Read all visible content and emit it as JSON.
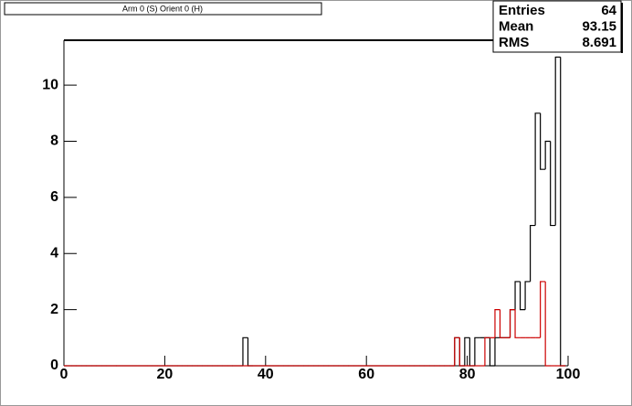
{
  "chart_data": {
    "type": "histogram",
    "title": "Arm 0 (S) Orient 0 (H)",
    "bins": [
      -0.5,
      0.5,
      1.5,
      2.5,
      3.5,
      4.5,
      5.5,
      6.5,
      7.5,
      8.5,
      9.5,
      10.5,
      11.5,
      12.5,
      13.5,
      14.5,
      15.5,
      16.5,
      17.5,
      18.5,
      19.5,
      20.5,
      21.5,
      22.5,
      23.5,
      24.5,
      25.5,
      26.5,
      27.5,
      28.5,
      29.5,
      30.5,
      31.5,
      32.5,
      33.5,
      34.5,
      35.5,
      36.5,
      37.5,
      38.5,
      39.5,
      40.5,
      41.5,
      42.5,
      43.5,
      44.5,
      45.5,
      46.5,
      47.5,
      48.5,
      49.5,
      50.5,
      51.5,
      52.5,
      53.5,
      54.5,
      55.5,
      56.5,
      57.5,
      58.5,
      59.5,
      60.5,
      61.5,
      62.5,
      63.5,
      64.5,
      65.5,
      66.5,
      67.5,
      68.5,
      69.5,
      70.5,
      71.5,
      72.5,
      73.5,
      74.5,
      75.5,
      76.5,
      77.5,
      78.5,
      79.5,
      80.5,
      81.5,
      82.5,
      83.5,
      84.5,
      85.5,
      86.5,
      87.5,
      88.5,
      89.5,
      90.5,
      91.5,
      92.5,
      93.5,
      94.5,
      95.5,
      96.5,
      97.5,
      98.5,
      99.5
    ],
    "series": [
      {
        "color": "#000000",
        "values": [
          0,
          0,
          0,
          0,
          0,
          0,
          0,
          0,
          0,
          0,
          0,
          0,
          0,
          0,
          0,
          0,
          0,
          0,
          0,
          0,
          0,
          0,
          0,
          0,
          0,
          0,
          0,
          0,
          0,
          0,
          0,
          0,
          0,
          0,
          0,
          0,
          1,
          0,
          0,
          0,
          0,
          0,
          0,
          0,
          0,
          0,
          0,
          0,
          0,
          0,
          0,
          0,
          0,
          0,
          0,
          0,
          0,
          0,
          0,
          0,
          0,
          0,
          0,
          0,
          0,
          0,
          0,
          0,
          0,
          0,
          0,
          0,
          0,
          0,
          0,
          0,
          0,
          0,
          1,
          0,
          1,
          0,
          1,
          1,
          1,
          0,
          1,
          1,
          1,
          2,
          3,
          2,
          3,
          5,
          9,
          7,
          8,
          5,
          11,
          0
        ]
      },
      {
        "color": "#cc0000",
        "values": [
          0,
          0,
          0,
          0,
          0,
          0,
          0,
          0,
          0,
          0,
          0,
          0,
          0,
          0,
          0,
          0,
          0,
          0,
          0,
          0,
          0,
          0,
          0,
          0,
          0,
          0,
          0,
          0,
          0,
          0,
          0,
          0,
          0,
          0,
          0,
          0,
          0,
          0,
          0,
          0,
          0,
          0,
          0,
          0,
          0,
          0,
          0,
          0,
          0,
          0,
          0,
          0,
          0,
          0,
          0,
          0,
          0,
          0,
          0,
          0,
          0,
          0,
          0,
          0,
          0,
          0,
          0,
          0,
          0,
          0,
          0,
          0,
          0,
          0,
          0,
          0,
          0,
          0,
          1,
          0,
          0,
          0,
          0,
          0,
          1,
          1,
          2,
          1,
          1,
          2,
          1,
          1,
          1,
          1,
          1,
          3,
          0,
          0,
          0,
          0
        ]
      }
    ],
    "xlim": [
      0,
      100
    ],
    "xticks": [
      0,
      20,
      40,
      60,
      80,
      100
    ],
    "ylim": [
      0,
      11.6
    ],
    "yticks": [
      0,
      2,
      4,
      6,
      8,
      10
    ],
    "stats": [
      {
        "label": "Entries",
        "value": 64
      },
      {
        "label": "Mean",
        "value": 93.15
      },
      {
        "label": "RMS",
        "value": 8.691
      }
    ]
  }
}
